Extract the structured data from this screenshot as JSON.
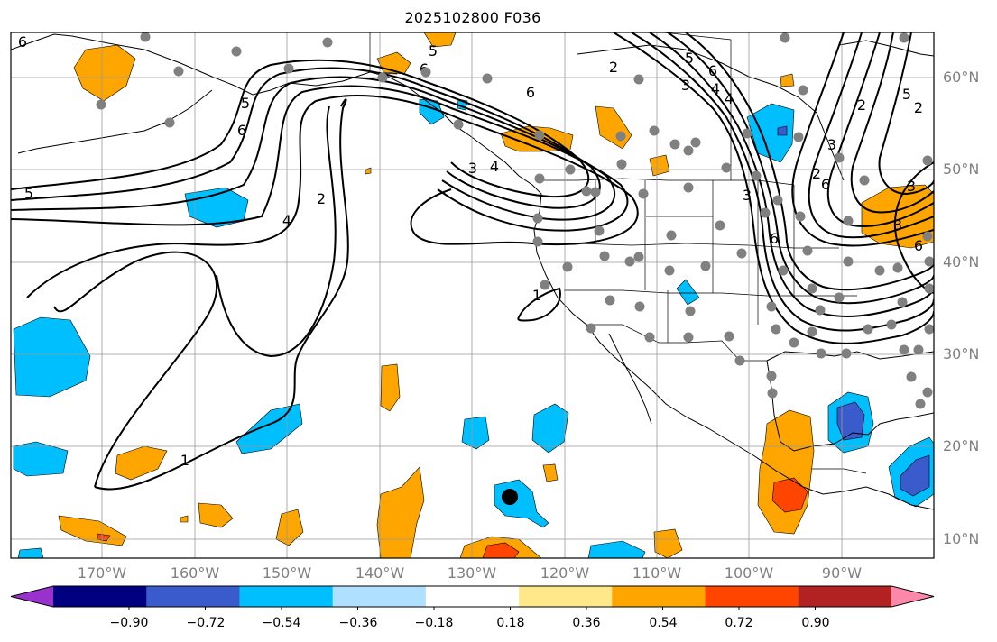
{
  "title": "2025102800 F036",
  "map": {
    "lat_labels": [
      "60°N",
      "50°N",
      "40°N",
      "30°N",
      "20°N",
      "10°N"
    ],
    "lon_labels": [
      "170°W",
      "160°W",
      "150°W",
      "140°W",
      "130°W",
      "120°W",
      "110°W",
      "100°W",
      "90°W"
    ],
    "contour_labels": [
      "6",
      "5",
      "4",
      "3",
      "2",
      "6",
      "5",
      "4",
      "3",
      "2",
      "1",
      "6",
      "5",
      "3",
      "6",
      "6",
      "4",
      "3",
      "2",
      "1",
      "2",
      "3",
      "6",
      "5",
      "6",
      "4",
      "6",
      "5",
      "3",
      "2"
    ],
    "marker_color": "#808080",
    "storm_marker_color": "#000000"
  },
  "colorbar": {
    "colors": [
      "#9932cc",
      "#000080",
      "#3a5bcb",
      "#00bfff",
      "#b0e0ff",
      "#ffffff",
      "#ffe88a",
      "#ffa500",
      "#ff4500",
      "#b22222",
      "#ff88aa"
    ],
    "tick_labels": [
      "−0.90",
      "−0.72",
      "−0.54",
      "−0.36",
      "−0.18",
      "0.18",
      "0.36",
      "0.54",
      "0.72",
      "0.90"
    ]
  }
}
